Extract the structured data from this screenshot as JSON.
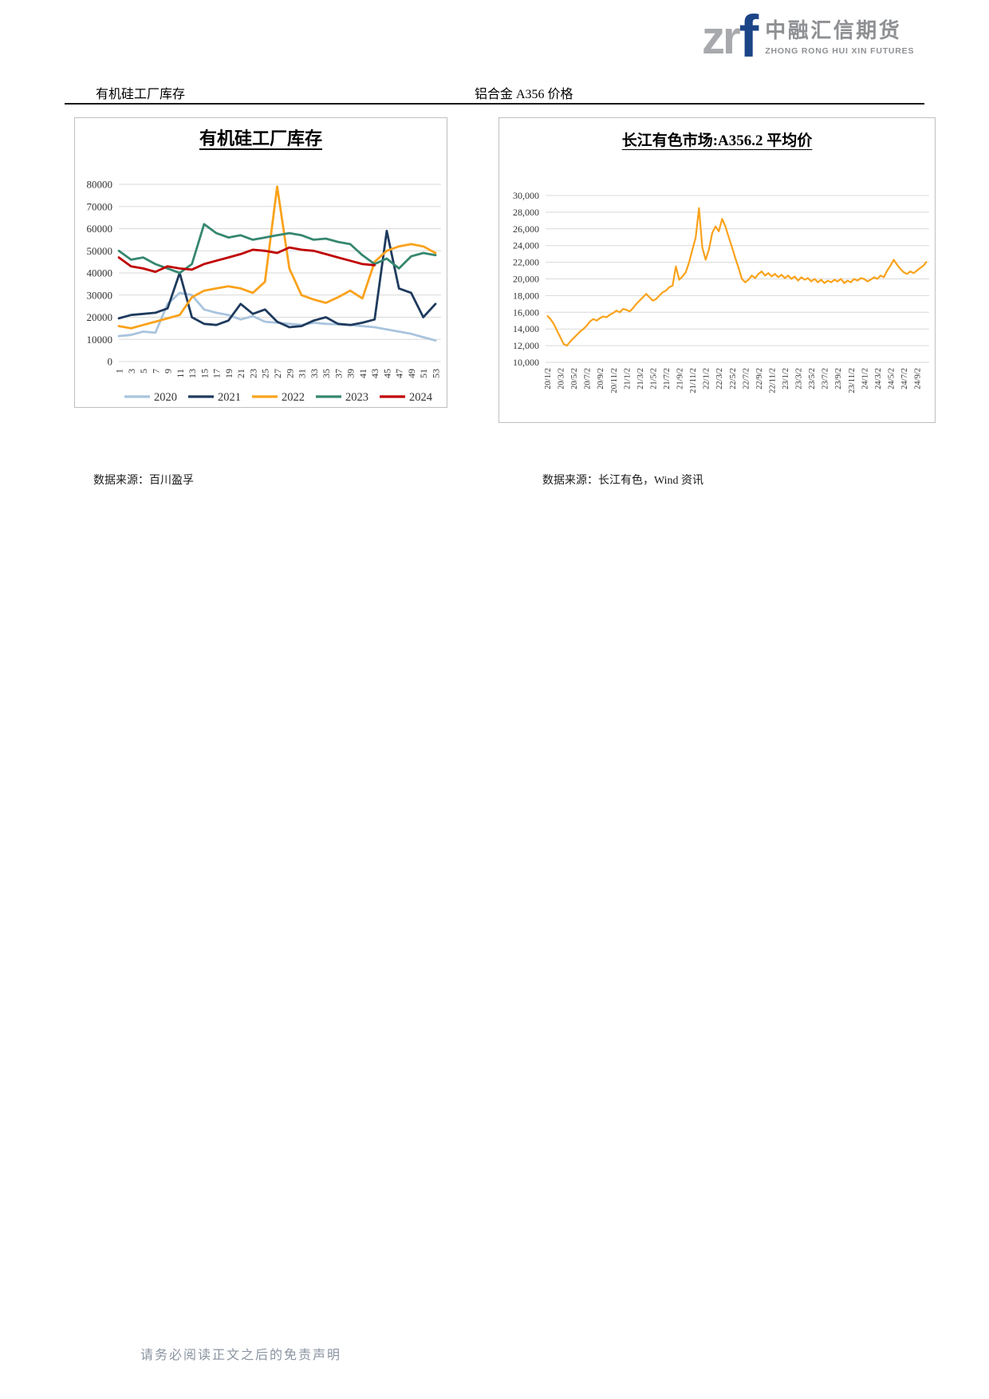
{
  "logo": {
    "mark_gray": "zr",
    "mark_blue": "f",
    "name_cn": "中融汇信期货",
    "name_en": "ZHONG RONG HUI XIN FUTURES"
  },
  "sections": {
    "left_header": "有机硅工厂库存",
    "right_header": "铝合金 A356 价格"
  },
  "sources": {
    "left": "数据来源：百川盈孚",
    "right": "数据来源：长江有色，Wind 资讯"
  },
  "page": {
    "footer": "请务必阅读正文之后的免责声明"
  },
  "colors": {
    "brand_navy": "#1C4587",
    "brand_gray": "#8E9093",
    "gridline": "#D9D9D9"
  },
  "chart_data": [
    {
      "type": "line",
      "title": "有机硅工厂库存",
      "xlabel": "",
      "ylabel": "",
      "ylim": [
        0,
        80000
      ],
      "ytick": 10000,
      "grid": true,
      "legend_position": "bottom",
      "x": [
        1,
        3,
        5,
        7,
        9,
        11,
        13,
        15,
        17,
        19,
        21,
        23,
        25,
        27,
        29,
        31,
        33,
        35,
        37,
        39,
        41,
        43,
        45,
        47,
        49,
        51,
        53
      ],
      "series": [
        {
          "name": "2020",
          "color": "#A9C4DE",
          "values": [
            11500,
            12000,
            13500,
            13000,
            26000,
            31000,
            30000,
            23500,
            22000,
            21000,
            19000,
            20500,
            18000,
            17500,
            17000,
            16500,
            17500,
            17000,
            16800,
            16500,
            16000,
            15500,
            14500,
            13500,
            12500,
            11000,
            9500
          ]
        },
        {
          "name": "2021",
          "color": "#1F3B5E",
          "values": [
            19500,
            21000,
            21500,
            22000,
            24000,
            40000,
            20000,
            17000,
            16500,
            18500,
            26000,
            21500,
            23500,
            18000,
            15500,
            16000,
            18500,
            20000,
            17000,
            16500,
            17500,
            19000,
            59000,
            33000,
            31000,
            20000,
            26000
          ]
        },
        {
          "name": "2022",
          "color": "#FAA21B",
          "values": [
            16000,
            15000,
            16500,
            18000,
            19500,
            21000,
            29000,
            32000,
            33000,
            34000,
            33000,
            31000,
            36000,
            79000,
            42000,
            30000,
            28000,
            26500,
            29000,
            32000,
            28500,
            45000,
            50000,
            52000,
            53000,
            52000,
            49000
          ]
        },
        {
          "name": "2023",
          "color": "#35876F",
          "values": [
            50000,
            46000,
            47000,
            44000,
            42000,
            40000,
            44000,
            62000,
            58000,
            56000,
            57000,
            55000,
            56000,
            57000,
            58000,
            57000,
            55000,
            55500,
            54000,
            53000,
            48000,
            44000,
            46500,
            42000,
            47500,
            49000,
            48000
          ]
        },
        {
          "name": "2024",
          "color": "#C00000",
          "values": [
            47000,
            43000,
            42000,
            40500,
            43000,
            42000,
            41500,
            44000,
            45500,
            47000,
            48500,
            50500,
            50000,
            49000,
            51500,
            50500,
            50000,
            48500,
            47000,
            45500,
            44000,
            43500
          ]
        }
      ]
    },
    {
      "type": "line",
      "title": "长江有色市场:A356.2 平均价",
      "xlabel": "",
      "ylabel": "",
      "ylim": [
        10000,
        30000
      ],
      "ytick": 2000,
      "grid": true,
      "color": "#FAA21B",
      "x_ticks": [
        "20/1/2",
        "20/3/2",
        "20/5/2",
        "20/7/2",
        "20/9/2",
        "20/11/2",
        "21/1/2",
        "21/3/2",
        "21/5/2",
        "21/7/2",
        "21/9/2",
        "21/11/2",
        "22/1/2",
        "22/3/2",
        "22/5/2",
        "22/7/2",
        "22/9/2",
        "22/11/2",
        "23/1/2",
        "23/3/2",
        "23/5/2",
        "23/7/2",
        "23/9/2",
        "23/11/2",
        "24/1/2",
        "24/3/2",
        "24/5/2",
        "24/7/2",
        "24/9/2"
      ],
      "values": [
        15600,
        15200,
        14600,
        13800,
        13000,
        12200,
        12000,
        12500,
        12900,
        13300,
        13700,
        14000,
        14400,
        14900,
        15200,
        15000,
        15300,
        15500,
        15400,
        15700,
        15900,
        16200,
        16000,
        16400,
        16300,
        16100,
        16500,
        17000,
        17400,
        17800,
        18200,
        17800,
        17400,
        17600,
        18000,
        18400,
        18600,
        19000,
        19200,
        21500,
        19900,
        20300,
        20800,
        22000,
        23500,
        25000,
        28500,
        23800,
        22300,
        23500,
        25500,
        26300,
        25700,
        27200,
        26300,
        25000,
        23800,
        22500,
        21300,
        20000,
        19600,
        19900,
        20400,
        20100,
        20600,
        20900,
        20400,
        20700,
        20300,
        20600,
        20200,
        20500,
        20100,
        20400,
        20000,
        20300,
        19800,
        20200,
        19900,
        20100,
        19700,
        20000,
        19600,
        19900,
        19500,
        19800,
        19600,
        19900,
        19700,
        20000,
        19500,
        19800,
        19600,
        20000,
        19800,
        20100,
        20000,
        19700,
        19900,
        20200,
        20000,
        20400,
        20200,
        21000,
        21600,
        22300,
        21700,
        21200,
        20800,
        20600,
        20900,
        20700,
        21000,
        21300,
        21600,
        22100
      ]
    }
  ]
}
